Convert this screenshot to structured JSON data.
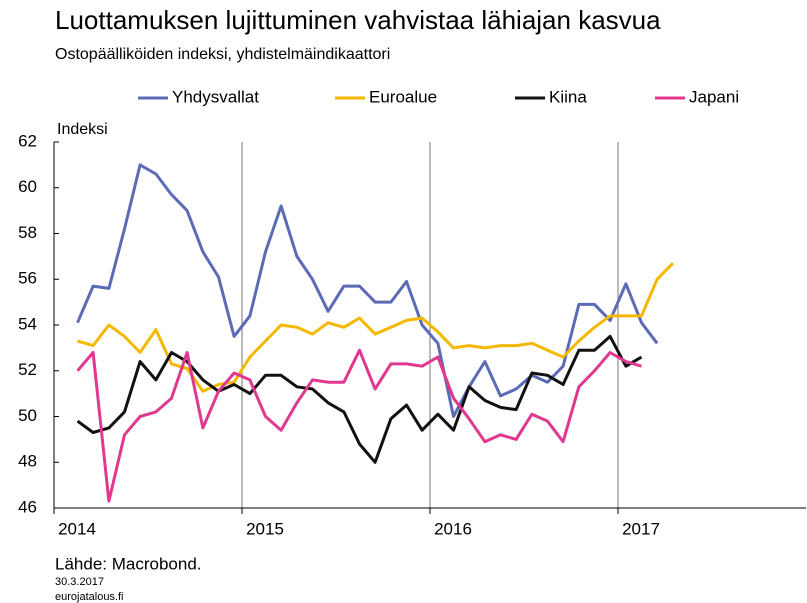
{
  "chart_data": {
    "type": "line",
    "title": "Luottamuksen lujittuminen vahvistaa lähiajan kasvua",
    "subtitle": "Ostopäälliköiden indeksi, yhdistelmäindikaattori",
    "y_label": "Indeksi",
    "source": "Lähde: Macrobond.",
    "date": "30.3.2017",
    "site": "eurojatalous.fi",
    "x": [
      2014.125,
      2014.208,
      2014.292,
      2014.375,
      2014.458,
      2014.542,
      2014.625,
      2014.708,
      2014.792,
      2014.875,
      2014.958,
      2015.042,
      2015.125,
      2015.208,
      2015.292,
      2015.375,
      2015.458,
      2015.542,
      2015.625,
      2015.708,
      2015.792,
      2015.875,
      2015.958,
      2016.042,
      2016.125,
      2016.208,
      2016.292,
      2016.375,
      2016.458,
      2016.542,
      2016.625,
      2016.708,
      2016.792,
      2016.875,
      2016.958,
      2017.042,
      2017.125,
      2017.208,
      2017.292
    ],
    "series": [
      {
        "name": "Yhdysvallat",
        "color": "#5b6bb5",
        "values": [
          54.1,
          55.7,
          55.6,
          58.2,
          61.0,
          60.6,
          59.7,
          59.0,
          57.2,
          56.1,
          53.5,
          54.4,
          57.2,
          59.2,
          57.0,
          56.0,
          54.6,
          55.7,
          55.7,
          55.0,
          55.0,
          55.9,
          54.0,
          53.2,
          50.0,
          51.3,
          52.4,
          50.9,
          51.2,
          51.8,
          51.5,
          52.2,
          54.9,
          54.9,
          54.2,
          55.8,
          54.1,
          53.2,
          null
        ]
      },
      {
        "name": "Euroalue",
        "color": "#f5b800",
        "values": [
          53.3,
          53.1,
          54.0,
          53.5,
          52.8,
          53.8,
          52.3,
          52.1,
          51.1,
          51.4,
          51.5,
          52.6,
          53.3,
          54.0,
          53.9,
          53.6,
          54.1,
          53.9,
          54.3,
          53.6,
          53.9,
          54.2,
          54.3,
          53.7,
          53.0,
          53.1,
          53.0,
          53.1,
          53.1,
          53.2,
          52.9,
          52.6,
          53.3,
          53.9,
          54.4,
          54.4,
          54.4,
          56.0,
          56.7
        ]
      },
      {
        "name": "Kiina",
        "color": "#111111",
        "values": [
          49.8,
          49.3,
          49.5,
          50.2,
          52.4,
          51.6,
          52.8,
          52.4,
          51.6,
          51.1,
          51.4,
          51.0,
          51.8,
          51.8,
          51.3,
          51.2,
          50.6,
          50.2,
          48.8,
          48.0,
          49.9,
          50.5,
          49.4,
          50.1,
          49.4,
          51.3,
          50.7,
          50.4,
          50.3,
          51.9,
          51.8,
          51.4,
          52.9,
          52.9,
          53.5,
          52.2,
          52.6,
          null,
          null
        ]
      },
      {
        "name": "Japani",
        "color": "#e0388f",
        "values": [
          52.0,
          52.8,
          46.3,
          49.2,
          50.0,
          50.2,
          50.8,
          52.8,
          49.5,
          51.1,
          51.9,
          51.6,
          50.0,
          49.4,
          50.6,
          51.6,
          51.5,
          51.5,
          52.9,
          51.2,
          52.3,
          52.3,
          52.2,
          52.6,
          50.8,
          49.9,
          48.9,
          49.2,
          49.0,
          50.1,
          49.8,
          48.9,
          51.3,
          52.0,
          52.8,
          52.4,
          52.2,
          null,
          null
        ]
      }
    ],
    "xlim": [
      2014,
      2018
    ],
    "xticks": [
      2014,
      2015,
      2016,
      2017
    ],
    "ylim": [
      46,
      62
    ],
    "yticks": [
      46,
      48,
      50,
      52,
      54,
      56,
      58,
      60,
      62
    ],
    "grid": true
  }
}
